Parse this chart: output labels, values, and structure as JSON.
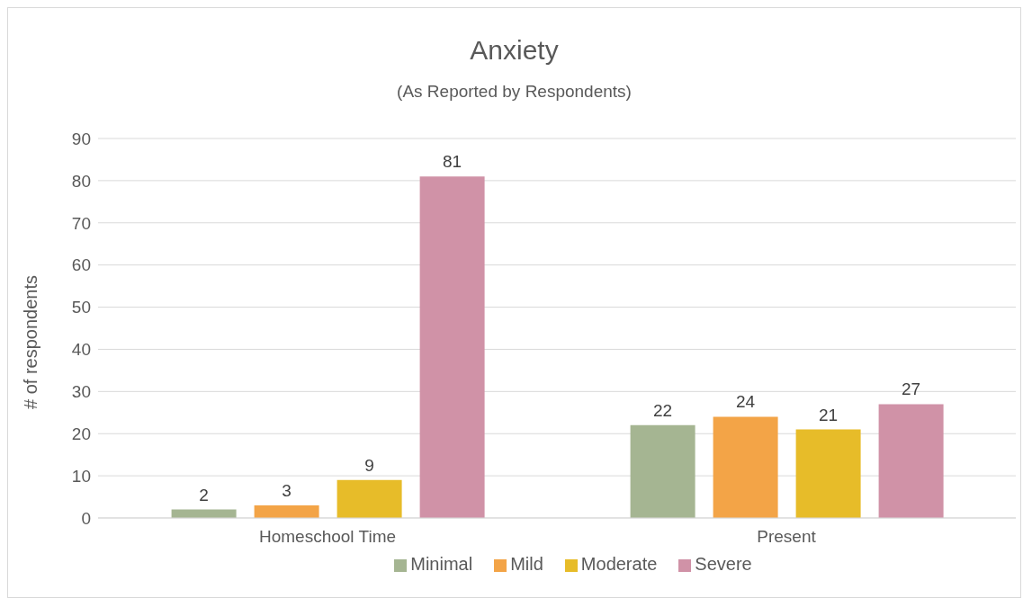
{
  "chart_data": {
    "type": "bar",
    "title": "Anxiety",
    "subtitle": "(As Reported by Respondents)",
    "ylabel": "# of respondents",
    "categories": [
      "Homeschool Time",
      "Present"
    ],
    "series": [
      {
        "name": "Minimal",
        "color": "#a5b592",
        "values": [
          2,
          22
        ]
      },
      {
        "name": "Mild",
        "color": "#f3a447",
        "values": [
          3,
          24
        ]
      },
      {
        "name": "Moderate",
        "color": "#e7bc29",
        "values": [
          9,
          21
        ]
      },
      {
        "name": "Severe",
        "color": "#d092a7",
        "values": [
          81,
          27
        ]
      }
    ],
    "ylim": [
      0,
      90
    ],
    "yticks": [
      0,
      10,
      20,
      30,
      40,
      50,
      60,
      70,
      80,
      90
    ],
    "grid": "y",
    "legend": "bottom",
    "data_labels": true
  }
}
